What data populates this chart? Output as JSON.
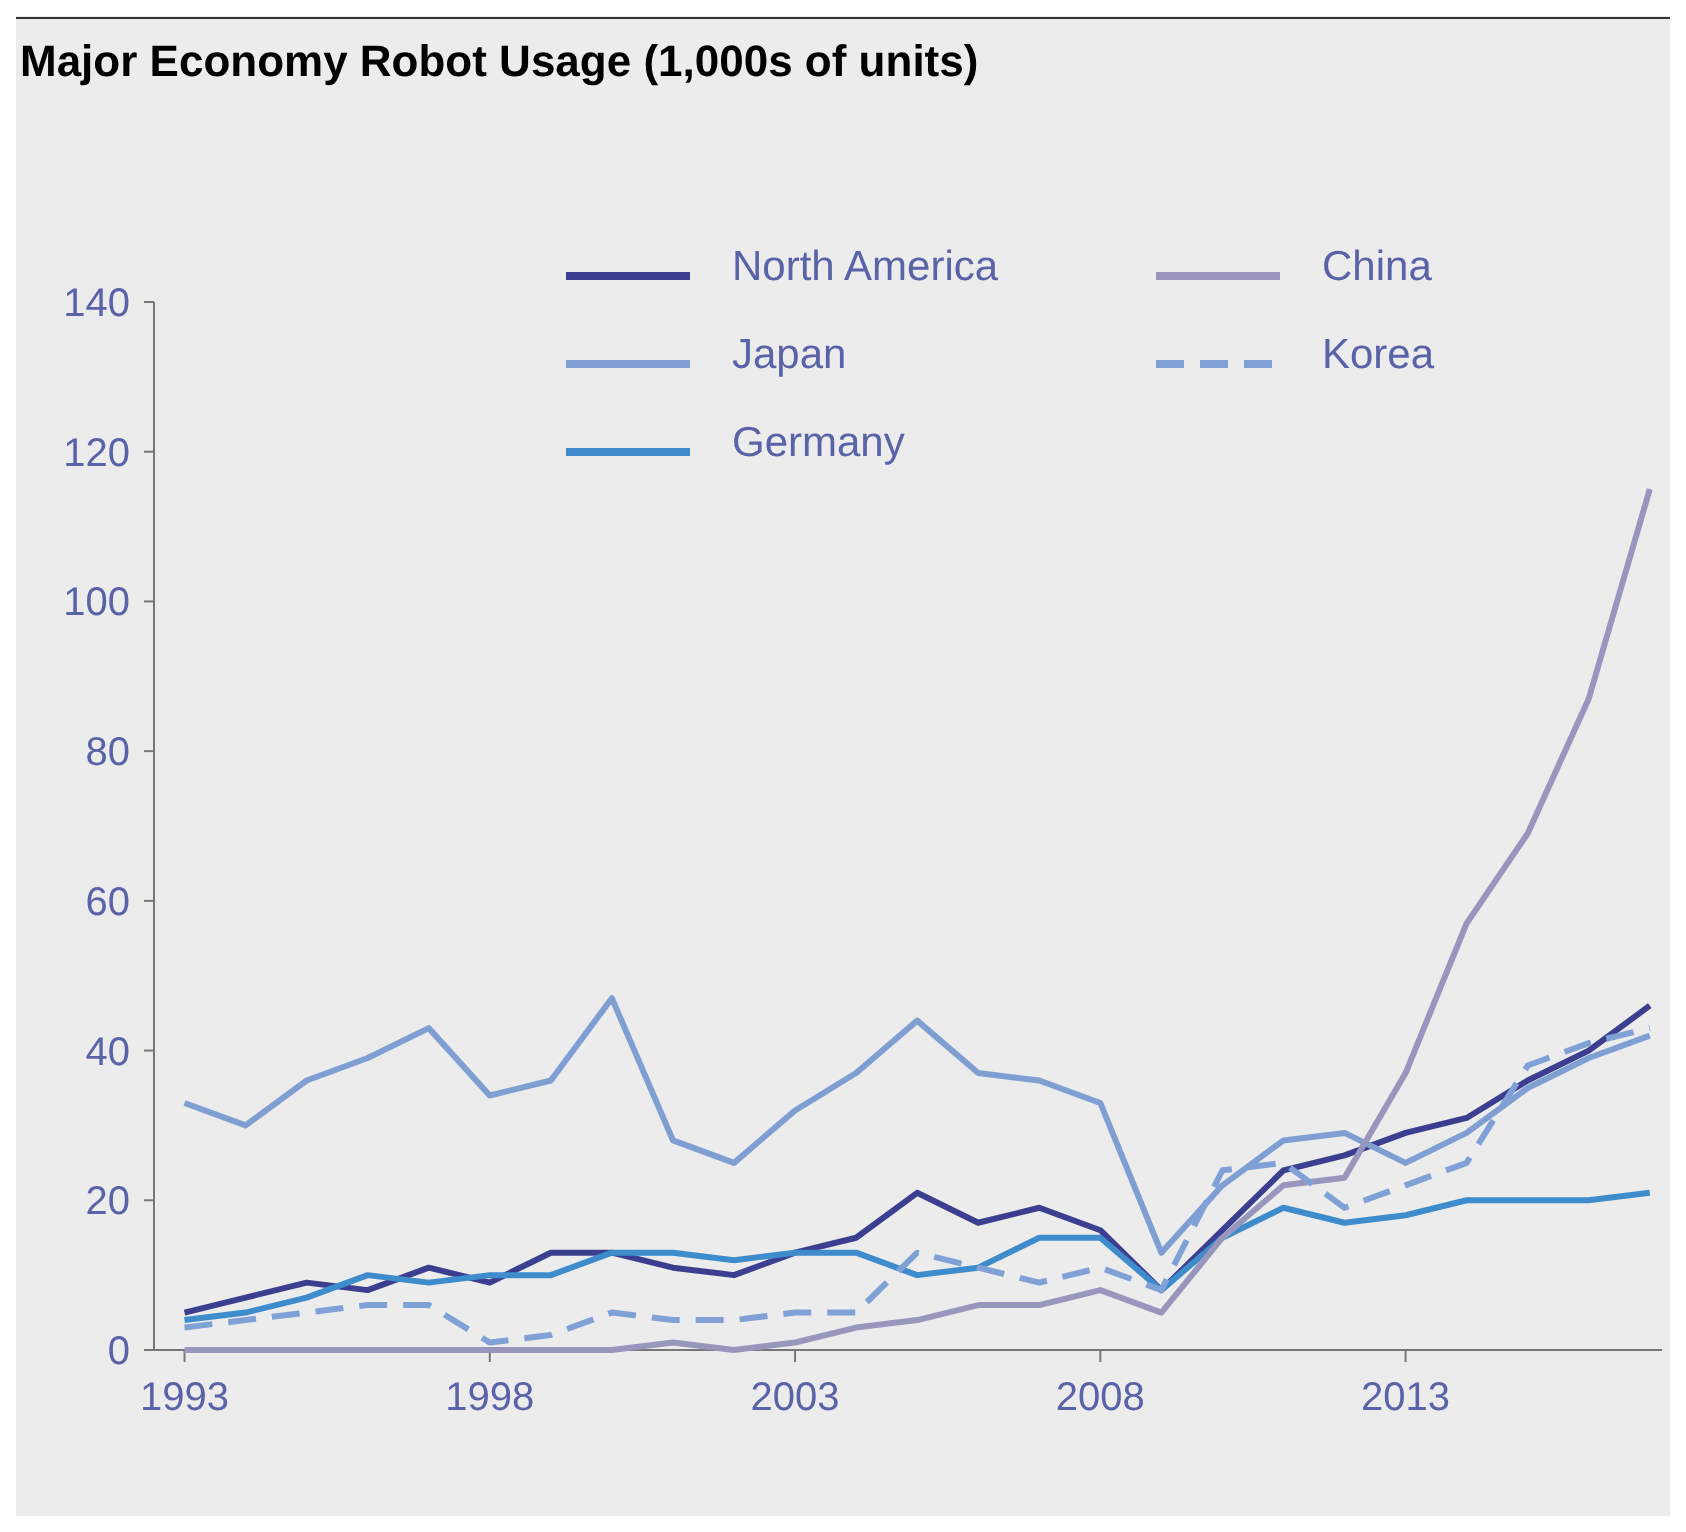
{
  "chart_data": {
    "type": "line",
    "title": "Major Economy Robot Usage (1,000s of units)",
    "x": [
      1993,
      1994,
      1995,
      1996,
      1997,
      1998,
      1999,
      2000,
      2001,
      2002,
      2003,
      2004,
      2005,
      2006,
      2007,
      2008,
      2009,
      2010,
      2011,
      2012,
      2013,
      2014,
      2015,
      2016,
      2017
    ],
    "series": [
      {
        "name": "North America",
        "color": "#3c3f8f",
        "values": [
          5,
          7,
          9,
          8,
          11,
          9,
          13,
          13,
          11,
          10,
          13,
          15,
          21,
          17,
          19,
          16,
          8,
          16,
          24,
          26,
          29,
          31,
          36,
          40,
          46
        ]
      },
      {
        "name": "Japan",
        "color": "#7f9fd3",
        "values": [
          33,
          30,
          36,
          39,
          43,
          34,
          36,
          47,
          28,
          25,
          32,
          37,
          44,
          37,
          36,
          33,
          13,
          22,
          28,
          29,
          25,
          29,
          35,
          39,
          42
        ]
      },
      {
        "name": "Germany",
        "color": "#3e8ccb",
        "values": [
          4,
          5,
          7,
          10,
          9,
          10,
          10,
          13,
          13,
          12,
          13,
          13,
          10,
          11,
          15,
          15,
          8,
          15,
          19,
          17,
          18,
          20,
          20,
          20,
          21
        ]
      },
      {
        "name": "China",
        "color": "#9896bd",
        "values": [
          0,
          0,
          0,
          0,
          0,
          0,
          0,
          0,
          1,
          0,
          1,
          3,
          4,
          6,
          6,
          8,
          5,
          15,
          22,
          23,
          37,
          57,
          69,
          87,
          115
        ]
      },
      {
        "name": "Korea",
        "color": "#7fa1d6",
        "line_style": "dashed",
        "values": [
          3,
          4,
          5,
          6,
          6,
          1,
          2,
          5,
          4,
          4,
          5,
          5,
          13,
          11,
          9,
          11,
          8,
          24,
          25,
          19,
          22,
          25,
          38,
          41,
          43
        ]
      }
    ],
    "xlim": [
      1992.5,
      2017.2
    ],
    "xticks": [
      1993,
      1998,
      2003,
      2008,
      2013
    ],
    "ylim": [
      0,
      140
    ],
    "yticks": [
      0,
      20,
      40,
      60,
      80,
      100,
      120,
      140
    ],
    "grid": false,
    "legend": "top",
    "line_style": "solid"
  }
}
